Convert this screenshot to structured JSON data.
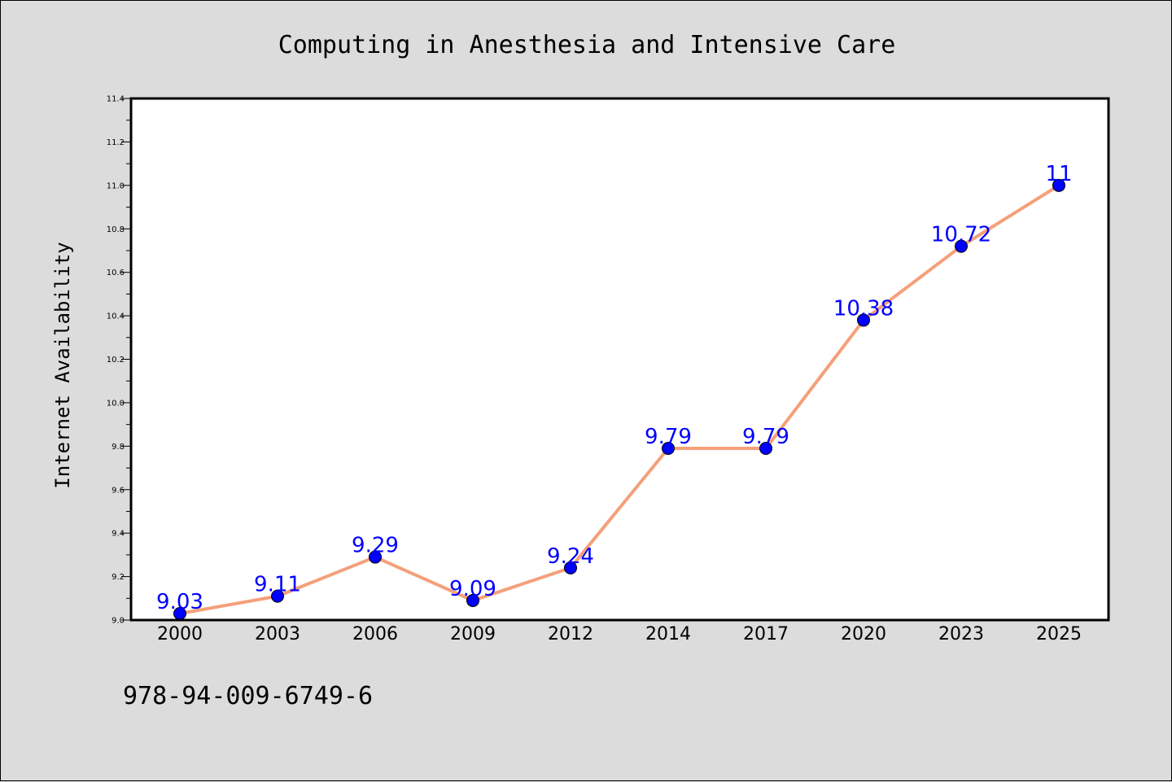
{
  "chart_data": {
    "type": "line",
    "title": "Computing in Anesthesia and Intensive Care",
    "xlabel": "",
    "ylabel": "Internet Availability",
    "categories": [
      "2000",
      "2003",
      "2006",
      "2009",
      "2012",
      "2014",
      "2017",
      "2020",
      "2023",
      "2025"
    ],
    "series": [
      {
        "values": [
          9.03,
          9.11,
          9.29,
          9.09,
          9.24,
          9.79,
          9.79,
          10.38,
          10.72,
          11.0
        ],
        "labels": [
          "9.03",
          "9.11",
          "9.29",
          "9.09",
          "9.24",
          "9.79",
          "9.79",
          "10.38",
          "10.72",
          "11"
        ]
      }
    ],
    "ylim": [
      9.0,
      11.4
    ],
    "yticks": [
      "9.0",
      "9.2",
      "9.4",
      "9.6",
      "9.8",
      "10.0",
      "10.2",
      "10.4",
      "10.6",
      "10.8",
      "11.0",
      "11.2",
      "11.4"
    ],
    "grid": false,
    "line_color": "#f4a07a",
    "marker_color": "#0000ff",
    "label_color": "#0000ff",
    "plot_background": "#ffffff",
    "figure_background": "#dcdcdc"
  },
  "footer": {
    "isbn": "978-94-009-6749-6"
  }
}
